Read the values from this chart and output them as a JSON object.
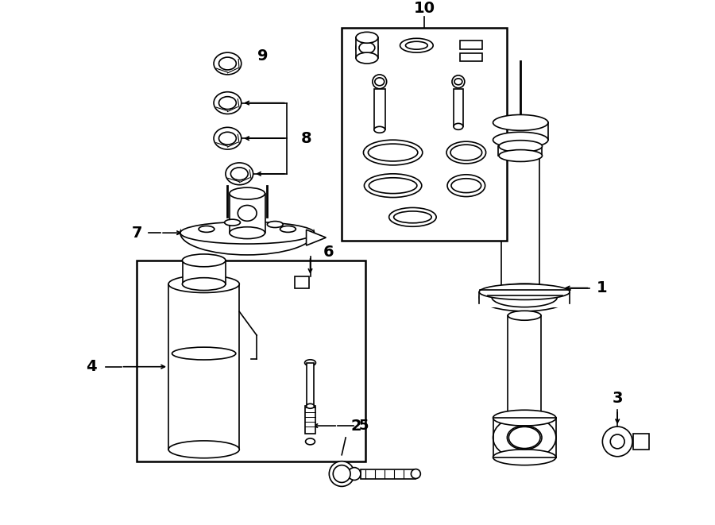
{
  "bg_color": "#ffffff",
  "lc": "#000000",
  "lw": 1.2,
  "fig_w": 9.0,
  "fig_h": 6.61,
  "dpi": 100
}
